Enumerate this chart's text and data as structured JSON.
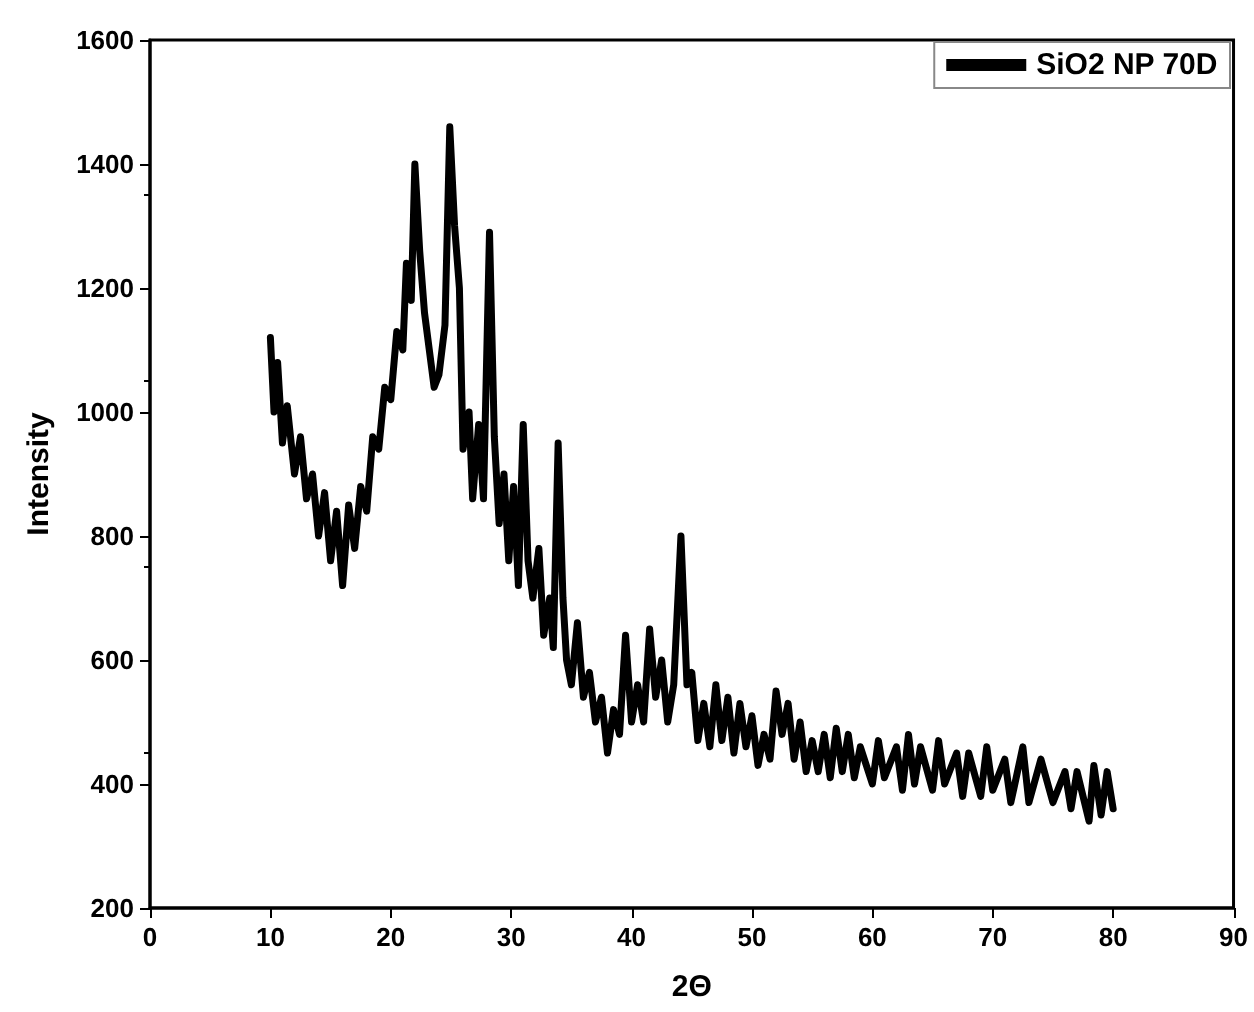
{
  "chart_data": {
    "type": "line",
    "xlabel": "2Θ",
    "ylabel": "Intensity",
    "xlim": [
      0,
      90
    ],
    "xticks": [
      0,
      10,
      20,
      30,
      40,
      50,
      60,
      70,
      80,
      90
    ],
    "ylim": [
      200,
      1600
    ],
    "yticks": [
      200,
      400,
      600,
      800,
      1000,
      1200,
      1400,
      1600
    ],
    "grid": false,
    "legend": "top right",
    "marker": "none",
    "line_style": "solid",
    "series": [
      {
        "name": "SiO2 NP 70D",
        "color": "#000000",
        "x": [
          10,
          10.3,
          10.6,
          11,
          11.4,
          12,
          12.5,
          13,
          13.5,
          14,
          14.5,
          15,
          15.5,
          16,
          16.5,
          17,
          17.5,
          18,
          18.5,
          19,
          19.5,
          20,
          20.5,
          21,
          21.3,
          21.7,
          22,
          22.4,
          22.8,
          23.2,
          23.6,
          24,
          24.5,
          24.9,
          25.3,
          25.7,
          26,
          26.5,
          26.8,
          27.3,
          27.7,
          28.2,
          28.6,
          29,
          29.4,
          29.8,
          30.2,
          30.6,
          31,
          31.4,
          31.8,
          32.3,
          32.7,
          33.2,
          33.5,
          33.9,
          34.3,
          34.6,
          35,
          35.5,
          36,
          36.5,
          37,
          37.5,
          38,
          38.5,
          39,
          39.5,
          40,
          40.5,
          41,
          41.5,
          42,
          42.5,
          43,
          43.5,
          44.1,
          44.6,
          45,
          45.5,
          46,
          46.5,
          47,
          47.5,
          48,
          48.5,
          49,
          49.5,
          50,
          50.5,
          51,
          51.5,
          52,
          52.5,
          53,
          53.5,
          54,
          54.5,
          55,
          55.5,
          56,
          56.5,
          57,
          57.5,
          58,
          58.5,
          59,
          60,
          60.5,
          61,
          62,
          62.5,
          63,
          63.5,
          64,
          65,
          65.5,
          66,
          67,
          67.5,
          68,
          69,
          69.5,
          70,
          71,
          71.5,
          72.5,
          73,
          74,
          75,
          76,
          76.5,
          77,
          78,
          78.4,
          79,
          79.5,
          80
        ],
        "values": [
          1120,
          1000,
          1080,
          950,
          1010,
          900,
          960,
          860,
          900,
          800,
          870,
          760,
          840,
          720,
          850,
          780,
          880,
          840,
          960,
          940,
          1040,
          1020,
          1130,
          1100,
          1240,
          1180,
          1400,
          1260,
          1160,
          1100,
          1040,
          1060,
          1140,
          1460,
          1300,
          1200,
          940,
          1000,
          860,
          980,
          860,
          1290,
          960,
          820,
          900,
          760,
          880,
          720,
          980,
          760,
          700,
          780,
          640,
          700,
          620,
          950,
          700,
          600,
          560,
          660,
          540,
          580,
          500,
          540,
          450,
          520,
          480,
          640,
          500,
          560,
          500,
          650,
          540,
          600,
          500,
          560,
          800,
          560,
          580,
          470,
          530,
          460,
          560,
          470,
          540,
          450,
          530,
          460,
          510,
          430,
          480,
          440,
          550,
          480,
          530,
          440,
          500,
          420,
          470,
          420,
          480,
          410,
          490,
          420,
          480,
          410,
          460,
          400,
          470,
          410,
          460,
          390,
          480,
          400,
          460,
          390,
          470,
          400,
          450,
          380,
          450,
          380,
          460,
          390,
          440,
          370,
          460,
          370,
          440,
          370,
          420,
          360,
          420,
          340,
          430,
          350,
          420,
          360
        ]
      }
    ]
  }
}
